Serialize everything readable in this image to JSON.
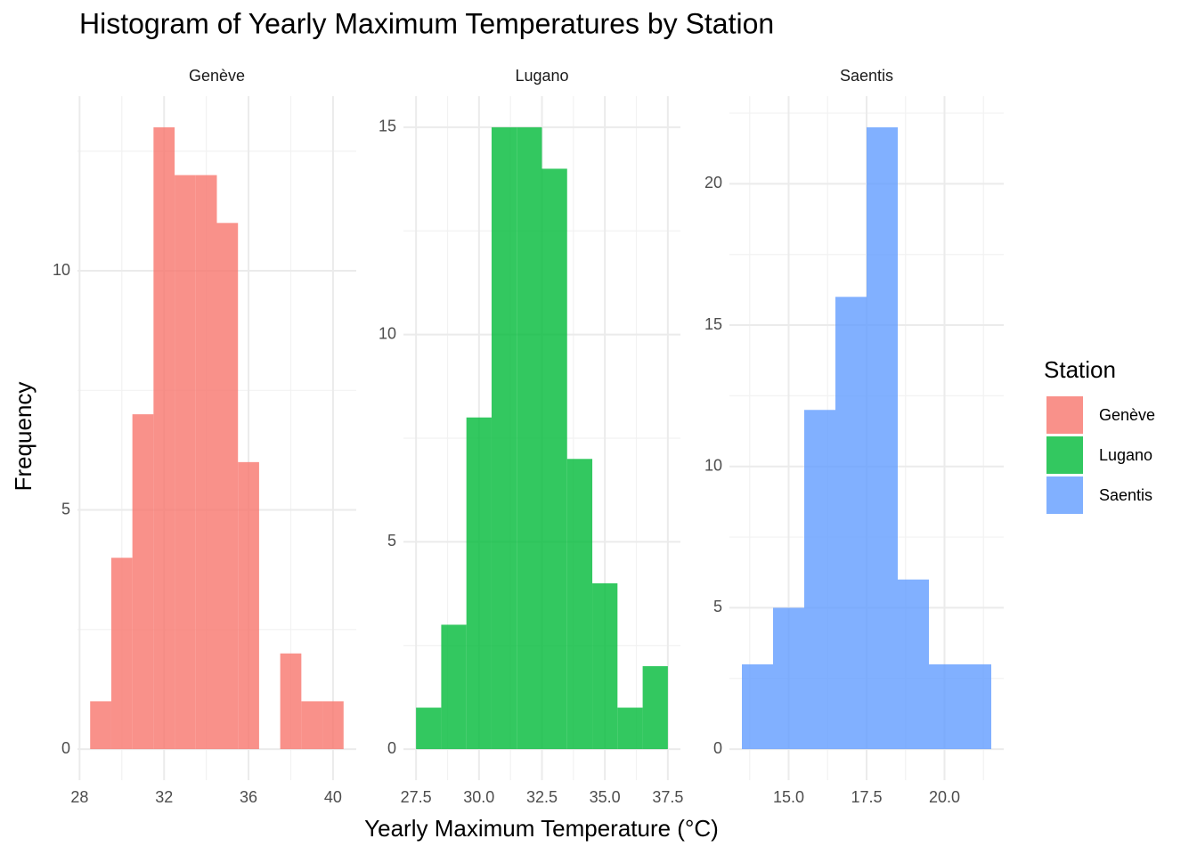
{
  "figure": {
    "title": "Histogram of Yearly Maximum Temperatures by Station",
    "x_label": "Yearly Maximum Temperature (°C)",
    "y_label": "Frequency",
    "legend_title": "Station"
  },
  "chart_data": [
    {
      "type": "histogram",
      "title": "Genève",
      "color": "#F8766D",
      "opacity": 0.8,
      "bins": [
        28.5,
        29.5,
        30.5,
        31.5,
        32.5,
        33.5,
        34.5,
        35.5,
        36.5,
        37.5,
        38.5,
        39.5,
        40.5
      ],
      "values": [
        1,
        4,
        7,
        13,
        12,
        12,
        11,
        6,
        0,
        2,
        1,
        1
      ],
      "xlim": [
        27.9,
        41.1
      ],
      "xticks": [
        28,
        32,
        36,
        40
      ],
      "x_minor_ticks": [
        30,
        34,
        38
      ],
      "ylim": [
        -0.65,
        13.65
      ],
      "yticks": [
        0,
        5,
        10
      ],
      "y_minor_ticks": [
        2.5,
        7.5,
        12.5
      ],
      "grid": true
    },
    {
      "type": "histogram",
      "title": "Lugano",
      "color": "#00BA38",
      "opacity": 0.8,
      "bins": [
        27.5,
        28.5,
        29.5,
        30.5,
        31.5,
        32.5,
        33.5,
        34.5,
        35.5,
        36.5,
        37.5
      ],
      "values": [
        1,
        3,
        8,
        15,
        15,
        14,
        7,
        4,
        1,
        2
      ],
      "xlim": [
        27.0,
        38.0
      ],
      "xticks": [
        27.5,
        {
          "value": 30,
          "label": "30.0"
        },
        32.5,
        {
          "value": 35,
          "label": "35.0"
        },
        37.5
      ],
      "x_minor_ticks": [
        28.75,
        31.25,
        33.75,
        36.25
      ],
      "ylim": [
        -0.75,
        15.75
      ],
      "yticks": [
        0,
        5,
        10,
        15
      ],
      "y_minor_ticks": [
        2.5,
        7.5,
        12.5
      ],
      "grid": true
    },
    {
      "type": "histogram",
      "title": "Saentis",
      "color": "#619CFF",
      "opacity": 0.8,
      "bins": [
        13.5,
        14.5,
        15.5,
        16.5,
        17.5,
        18.5,
        19.5,
        20.5,
        21.5
      ],
      "values": [
        3,
        5,
        12,
        16,
        22,
        6,
        3,
        3
      ],
      "xlim": [
        13.1,
        21.9
      ],
      "xticks": [
        {
          "value": 15,
          "label": "15.0"
        },
        17.5,
        {
          "value": 20,
          "label": "20.0"
        }
      ],
      "x_minor_ticks": [
        13.75,
        16.25,
        18.75,
        21.25
      ],
      "ylim": [
        -1.1,
        23.1
      ],
      "yticks": [
        0,
        5,
        10,
        15,
        20
      ],
      "y_minor_ticks": [
        2.5,
        7.5,
        12.5,
        17.5,
        22.5
      ],
      "grid": true
    }
  ]
}
